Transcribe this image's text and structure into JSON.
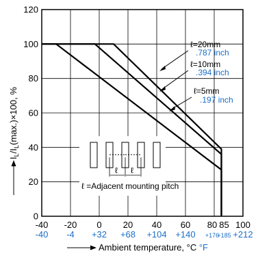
{
  "chart_data": {
    "type": "line",
    "xlabel_text": "Ambient temperature, °C",
    "xlabel_unit_f": "°F",
    "ylabel_left": "I",
    "ylabel_sub1": "L",
    "ylabel_mid": "/I",
    "ylabel_sub2": "L",
    "ylabel_right": "(max.)×100, %",
    "xlim": [
      -40,
      100
    ],
    "ylim": [
      0,
      120
    ],
    "grid": true,
    "x_ticks": [
      {
        "c": "-40",
        "f": "-40",
        "v": -40
      },
      {
        "c": "-20",
        "f": "-4",
        "v": -20
      },
      {
        "c": "0",
        "f": "+32",
        "v": 0
      },
      {
        "c": "20",
        "f": "+68",
        "v": 20
      },
      {
        "c": "40",
        "f": "+104",
        "v": 40
      },
      {
        "c": "60",
        "f": "+140",
        "v": 60
      },
      {
        "c": "80",
        "f": "+176",
        "v": 80,
        "small_f": true
      },
      {
        "c": "85",
        "f": "+185",
        "v": 85,
        "small_f": true
      },
      {
        "c": "100",
        "f": "+212",
        "v": 100
      }
    ],
    "y_ticks": [
      "0",
      "20",
      "40",
      "60",
      "80",
      "100",
      "120"
    ],
    "series": [
      {
        "name": "ℓ=20mm",
        "inch": ".787 inch",
        "points": [
          [
            -40,
            100
          ],
          [
            10,
            100
          ],
          [
            85,
            39
          ],
          [
            85,
            0
          ]
        ]
      },
      {
        "name": "ℓ=10mm",
        "inch": ".394 inch",
        "points": [
          [
            -40,
            100
          ],
          [
            -3,
            100
          ],
          [
            85,
            36
          ],
          [
            85,
            0
          ]
        ]
      },
      {
        "name": "ℓ=5mm",
        "inch": ".197 inch",
        "points": [
          [
            -40,
            100
          ],
          [
            -30,
            100
          ],
          [
            85,
            27
          ],
          [
            85,
            0
          ]
        ]
      }
    ],
    "inset_caption": "ℓ =Adjacent mounting pitch",
    "inset_pitch_symbol": "ℓ"
  }
}
